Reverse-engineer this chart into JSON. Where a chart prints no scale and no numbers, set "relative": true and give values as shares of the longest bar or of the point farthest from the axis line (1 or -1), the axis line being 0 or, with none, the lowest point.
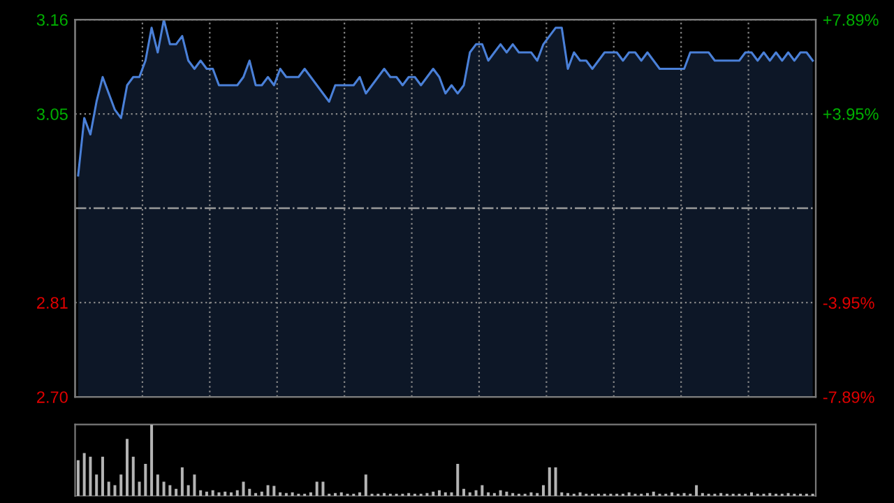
{
  "chart_data": [
    {
      "type": "area",
      "categories": [
        null,
        null,
        null,
        null,
        null,
        null,
        null,
        null,
        null,
        null,
        null,
        null,
        null,
        null,
        null,
        null,
        null,
        null,
        null,
        null,
        null,
        null,
        null,
        null,
        null,
        null,
        null,
        null,
        null,
        null,
        null,
        null,
        null,
        null,
        null,
        null,
        null,
        null,
        null,
        null,
        null,
        null,
        null,
        null,
        null,
        null,
        null,
        null,
        null,
        null,
        null,
        null,
        null,
        null,
        null,
        null,
        null,
        null,
        null,
        null,
        null,
        null,
        null,
        null,
        null,
        null,
        null,
        null,
        null,
        null,
        null,
        null,
        null,
        null,
        null,
        null,
        null,
        null,
        null,
        null,
        null,
        null,
        null,
        null,
        null,
        null,
        null,
        null,
        null,
        null,
        null,
        null,
        null,
        null,
        null,
        null,
        null,
        null,
        null,
        null,
        null,
        null,
        null,
        null,
        null,
        null,
        null,
        null,
        null,
        null,
        null,
        null,
        null,
        null,
        null,
        null,
        null,
        null,
        null,
        null,
        null
      ],
      "series": [
        {
          "color": "#4a80d8",
          "values": [
            2.97,
            3.04,
            3.02,
            3.06,
            3.09,
            3.07,
            3.05,
            3.04,
            3.08,
            3.09,
            3.09,
            3.11,
            3.15,
            3.12,
            3.16,
            3.13,
            3.13,
            3.14,
            3.11,
            3.1,
            3.11,
            3.1,
            3.1,
            3.08,
            3.08,
            3.08,
            3.08,
            3.09,
            3.11,
            3.08,
            3.08,
            3.09,
            3.08,
            3.1,
            3.09,
            3.09,
            3.09,
            3.1,
            3.09,
            3.08,
            3.07,
            3.06,
            3.08,
            3.08,
            3.08,
            3.08,
            3.09,
            3.07,
            3.08,
            3.09,
            3.1,
            3.09,
            3.09,
            3.08,
            3.09,
            3.09,
            3.08,
            3.09,
            3.1,
            3.09,
            3.07,
            3.08,
            3.07,
            3.08,
            3.12,
            3.13,
            3.13,
            3.11,
            3.12,
            3.13,
            3.12,
            3.13,
            3.12,
            3.12,
            3.12,
            3.11,
            3.13,
            3.14,
            3.15,
            3.15,
            3.1,
            3.12,
            3.11,
            3.11,
            3.1,
            3.11,
            3.12,
            3.12,
            3.12,
            3.11,
            3.12,
            3.12,
            3.11,
            3.12,
            3.11,
            3.1,
            3.1,
            3.1,
            3.1,
            3.1,
            3.12,
            3.12,
            3.12,
            3.12,
            3.11,
            3.11,
            3.11,
            3.11,
            3.11,
            3.12,
            3.12,
            3.11,
            3.12,
            3.11,
            3.12,
            3.11,
            3.12,
            3.11,
            3.12,
            3.12,
            3.11
          ]
        }
      ],
      "ylim": [
        2.7,
        3.16
      ],
      "yticks": [
        {
          "value": 2.7,
          "label": "2.70"
        },
        {
          "value": 2.815,
          "label": "2.81"
        },
        {
          "value": 3.045,
          "label": "3.05"
        },
        3.16
      ],
      "y2lim": [
        -7.89,
        7.89
      ],
      "y2ticks": [
        {
          "value": -7.89,
          "label": "-7.89%"
        },
        {
          "value": -3.95,
          "label": "-3.95%"
        },
        {
          "value": 3.95,
          "label": "+3.95%"
        },
        {
          "value": 7.89,
          "label": "+7.89%"
        }
      ],
      "ref_lines": [
        {
          "axis": "y",
          "value": 2.93,
          "label": null,
          "color": "#9a9a9a",
          "line_style": "dashdot"
        }
      ],
      "grid": true,
      "tick_labels": "y",
      "legend": false
    },
    {
      "type": "bar",
      "relative": true,
      "tick_labels": false,
      "legend": false,
      "categories": [
        null,
        null,
        null,
        null,
        null,
        null,
        null,
        null,
        null,
        null,
        null,
        null,
        null,
        null,
        null,
        null,
        null,
        null,
        null,
        null,
        null,
        null,
        null,
        null,
        null,
        null,
        null,
        null,
        null,
        null,
        null,
        null,
        null,
        null,
        null,
        null,
        null,
        null,
        null,
        null,
        null,
        null,
        null,
        null,
        null,
        null,
        null,
        null,
        null,
        null,
        null,
        null,
        null,
        null,
        null,
        null,
        null,
        null,
        null,
        null,
        null,
        null,
        null,
        null,
        null,
        null,
        null,
        null,
        null,
        null,
        null,
        null,
        null,
        null,
        null,
        null,
        null,
        null,
        null,
        null,
        null,
        null,
        null,
        null,
        null,
        null,
        null,
        null,
        null,
        null,
        null,
        null,
        null,
        null,
        null,
        null,
        null,
        null,
        null,
        null,
        null,
        null,
        null,
        null,
        null,
        null,
        null,
        null,
        null,
        null,
        null,
        null,
        null,
        null,
        null,
        null,
        null,
        null,
        null,
        null,
        null
      ],
      "series": [
        {
          "color": "#b4b4b4",
          "values": [
            0.5,
            0.6,
            0.55,
            0.3,
            0.55,
            0.2,
            0.15,
            0.3,
            0.8,
            0.55,
            0.2,
            0.45,
            1.0,
            0.3,
            0.2,
            0.15,
            0.1,
            0.4,
            0.15,
            0.3,
            0.08,
            0.06,
            0.08,
            0.05,
            0.06,
            0.05,
            0.08,
            0.2,
            0.1,
            0.04,
            0.06,
            0.15,
            0.14,
            0.05,
            0.04,
            0.05,
            0.03,
            0.03,
            0.05,
            0.2,
            0.2,
            0.03,
            0.04,
            0.05,
            0.03,
            0.03,
            0.05,
            0.3,
            0.03,
            0.03,
            0.04,
            0.03,
            0.03,
            0.03,
            0.04,
            0.03,
            0.03,
            0.04,
            0.06,
            0.08,
            0.05,
            0.05,
            0.45,
            0.1,
            0.05,
            0.08,
            0.15,
            0.05,
            0.04,
            0.08,
            0.06,
            0.04,
            0.03,
            0.03,
            0.05,
            0.04,
            0.15,
            0.4,
            0.4,
            0.05,
            0.04,
            0.03,
            0.05,
            0.03,
            0.03,
            0.03,
            0.03,
            0.03,
            0.03,
            0.03,
            0.05,
            0.03,
            0.03,
            0.04,
            0.06,
            0.03,
            0.03,
            0.05,
            0.03,
            0.04,
            0.03,
            0.15,
            0.04,
            0.03,
            0.03,
            0.04,
            0.03,
            0.03,
            0.03,
            0.03,
            0.05,
            0.03,
            0.03,
            0.04,
            0.03,
            0.03,
            0.04,
            0.03,
            0.03,
            0.03,
            0.03
          ]
        }
      ]
    }
  ]
}
